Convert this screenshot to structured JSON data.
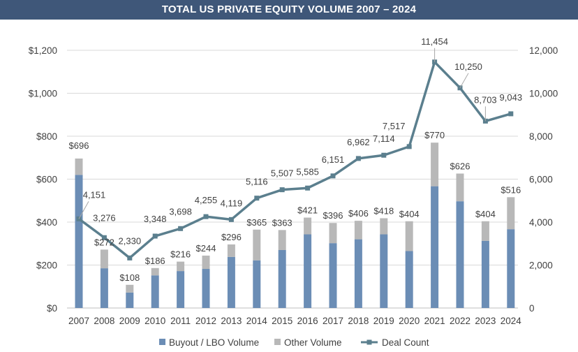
{
  "title": "TOTAL US PRIVATE EQUITY VOLUME 2007 – 2024",
  "chart_data": {
    "type": "bar",
    "stacked": true,
    "categories": [
      "2007",
      "2008",
      "2009",
      "2010",
      "2011",
      "2012",
      "2013",
      "2014",
      "2015",
      "2016",
      "2017",
      "2018",
      "2019",
      "2020",
      "2021",
      "2022",
      "2023",
      "2024"
    ],
    "series": [
      {
        "name": "Buyout / LBO Volume",
        "axis": "left",
        "color": "#6b8db5",
        "values": [
          620,
          185,
          72,
          152,
          172,
          182,
          238,
          222,
          270,
          343,
          302,
          320,
          343,
          265,
          567,
          497,
          313,
          367
        ]
      },
      {
        "name": "Other Volume",
        "axis": "left",
        "color": "#b8b8b8",
        "values": [
          76,
          87,
          36,
          34,
          44,
          62,
          58,
          143,
          93,
          78,
          94,
          86,
          75,
          139,
          203,
          129,
          91,
          149
        ]
      },
      {
        "name": "Deal Count",
        "type": "line",
        "axis": "right",
        "color": "#5b7f8e",
        "values": [
          4151,
          3276,
          2330,
          3348,
          3698,
          4255,
          4119,
          5116,
          5507,
          5585,
          6151,
          6962,
          7114,
          7517,
          11454,
          10250,
          8703,
          9043
        ]
      }
    ],
    "total_labels": [
      "$696",
      "$272",
      "$108",
      "$186",
      "$216",
      "$244",
      "$296",
      "$365",
      "$363",
      "$421",
      "$396",
      "$406",
      "$418",
      "$404",
      "$770",
      "$626",
      "$404",
      "$516"
    ],
    "count_labels": [
      "4,151",
      "3,276",
      "2,330",
      "3,348",
      "3,698",
      "4,255",
      "4,119",
      "5,116",
      "5,507",
      "5,585",
      "6,151",
      "6,962",
      "7,114",
      "7,517",
      "11,454",
      "10,250",
      "8,703",
      "9,043"
    ],
    "y_left": {
      "min": 0,
      "max": 1200,
      "step": 200,
      "tick_labels": [
        "$0",
        "$200",
        "$400",
        "$600",
        "$800",
        "$1,000",
        "$1,200"
      ]
    },
    "y_right": {
      "min": 0,
      "max": 12000,
      "step": 2000,
      "tick_labels": [
        "0",
        "2,000",
        "4,000",
        "6,000",
        "8,000",
        "10,000",
        "12,000"
      ]
    },
    "grid": true,
    "legend_position": "bottom",
    "legend": [
      "Buyout / LBO Volume",
      "Other Volume",
      "Deal Count"
    ]
  }
}
